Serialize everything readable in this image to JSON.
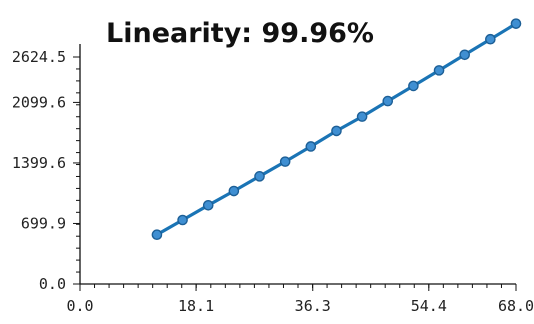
{
  "chart_data": {
    "type": "line",
    "title": "Linearity: 99.96%",
    "xlabel": "",
    "ylabel": "",
    "xlim": [
      0.0,
      68.0
    ],
    "ylim": [
      0.0,
      2624.5
    ],
    "x_ticks": [
      {
        "value": 0.0,
        "label": "0.0"
      },
      {
        "value": 18.1,
        "label": "18.1"
      },
      {
        "value": 36.3,
        "label": "36.3"
      },
      {
        "value": 54.4,
        "label": "54.4"
      },
      {
        "value": 68.0,
        "label": "68.0"
      }
    ],
    "y_ticks": [
      {
        "value": 0.0,
        "label": "0.0"
      },
      {
        "value": 699.9,
        "label": "699.9"
      },
      {
        "value": 1399.6,
        "label": "1399.6"
      },
      {
        "value": 2099.6,
        "label": "2099.6"
      },
      {
        "value": 2624.5,
        "label": "2624.5"
      }
    ],
    "grid": false,
    "series": [
      {
        "color": "#1a74b5",
        "marker_color": "#3f8fd2",
        "marker_edge": "#1d5f96",
        "x": [
          12.0,
          16.0,
          20.0,
          24.0,
          28.0,
          32.0,
          36.0,
          40.0,
          44.0,
          48.0,
          52.0,
          56.0,
          60.0,
          64.0,
          68.0
        ],
        "y": [
          570,
          740,
          910,
          1075,
          1245,
          1415,
          1590,
          1770,
          1935,
          2115,
          2290,
          2470,
          2650,
          2830,
          3010
        ]
      }
    ]
  }
}
